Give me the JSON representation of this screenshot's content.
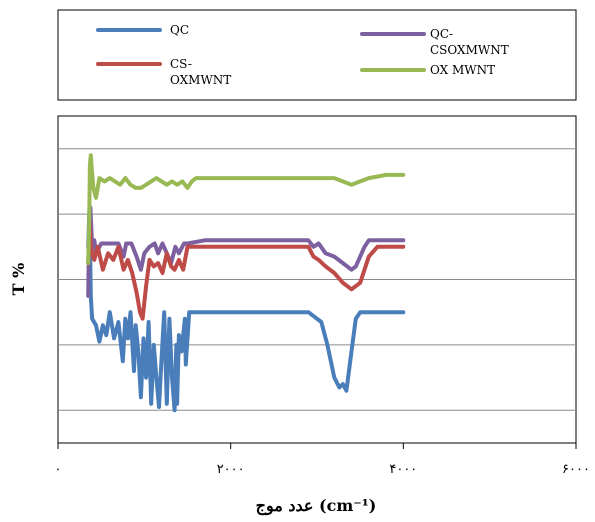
{
  "chart_data": {
    "type": "line",
    "title": "",
    "xlabel": "عدد موج (cm⁻¹)",
    "ylabel": "T %",
    "xlim": [
      0,
      6000
    ],
    "x_ticks": [
      {
        "value": 0,
        "label": "۰"
      },
      {
        "value": 2000,
        "label": "۲۰۰۰"
      },
      {
        "value": 4000,
        "label": "۴۰۰۰"
      },
      {
        "value": 6000,
        "label": "۶۰۰۰"
      }
    ],
    "ylim": [
      0,
      100
    ],
    "y_gridlines": [
      10,
      30,
      50,
      70,
      90
    ],
    "grid": true,
    "legend": {
      "placement": "top",
      "entries": [
        {
          "line1": "QC",
          "line2": "",
          "series": 0
        },
        {
          "line1": "QC-",
          "line2": "CSOXMWNT",
          "series": 1
        },
        {
          "line1": "CS-",
          "line2": "OXMWNT",
          "series": 2
        },
        {
          "line1": "OX MWNT",
          "line2": "",
          "series": 3
        }
      ]
    },
    "series": [
      {
        "name": "QC",
        "color": "#4a7ebb",
        "points": [
          [
            350,
            60
          ],
          [
            365,
            72
          ],
          [
            380,
            45
          ],
          [
            395,
            38
          ],
          [
            440,
            36
          ],
          [
            480,
            31
          ],
          [
            520,
            36
          ],
          [
            560,
            33
          ],
          [
            600,
            40
          ],
          [
            650,
            32
          ],
          [
            700,
            37
          ],
          [
            750,
            25
          ],
          [
            780,
            38
          ],
          [
            810,
            32
          ],
          [
            840,
            40
          ],
          [
            880,
            22
          ],
          [
            900,
            36
          ],
          [
            930,
            28
          ],
          [
            960,
            14
          ],
          [
            990,
            32
          ],
          [
            1020,
            20
          ],
          [
            1050,
            37
          ],
          [
            1080,
            12
          ],
          [
            1110,
            30
          ],
          [
            1140,
            20
          ],
          [
            1170,
            11
          ],
          [
            1200,
            26
          ],
          [
            1230,
            40
          ],
          [
            1260,
            12
          ],
          [
            1290,
            38
          ],
          [
            1320,
            20
          ],
          [
            1350,
            10
          ],
          [
            1370,
            30
          ],
          [
            1380,
            12
          ],
          [
            1400,
            33
          ],
          [
            1430,
            28
          ],
          [
            1470,
            38
          ],
          [
            1480,
            24
          ],
          [
            1520,
            40
          ],
          [
            1600,
            40
          ],
          [
            1800,
            40
          ],
          [
            2000,
            40
          ],
          [
            2300,
            40
          ],
          [
            2600,
            40
          ],
          [
            2900,
            40
          ],
          [
            3050,
            37
          ],
          [
            3120,
            30
          ],
          [
            3200,
            20
          ],
          [
            3260,
            17
          ],
          [
            3300,
            18
          ],
          [
            3340,
            16
          ],
          [
            3400,
            28
          ],
          [
            3450,
            38
          ],
          [
            3500,
            40
          ],
          [
            3700,
            40
          ],
          [
            4000,
            40
          ]
        ]
      },
      {
        "name": "QC-CSOXMWNT",
        "color": "#7d60a0",
        "points": [
          [
            350,
            45
          ],
          [
            360,
            65
          ],
          [
            375,
            72
          ],
          [
            395,
            60
          ],
          [
            420,
            62
          ],
          [
            440,
            58
          ],
          [
            500,
            61
          ],
          [
            600,
            61
          ],
          [
            700,
            61
          ],
          [
            760,
            57
          ],
          [
            790,
            61
          ],
          [
            850,
            61
          ],
          [
            910,
            57
          ],
          [
            960,
            53
          ],
          [
            1000,
            58
          ],
          [
            1060,
            60
          ],
          [
            1120,
            61
          ],
          [
            1160,
            58
          ],
          [
            1210,
            61
          ],
          [
            1260,
            58
          ],
          [
            1310,
            55
          ],
          [
            1360,
            60
          ],
          [
            1400,
            58
          ],
          [
            1460,
            61
          ],
          [
            1500,
            61
          ],
          [
            1700,
            62
          ],
          [
            2000,
            62
          ],
          [
            2500,
            62
          ],
          [
            2900,
            62
          ],
          [
            2960,
            60
          ],
          [
            3020,
            61
          ],
          [
            3100,
            58
          ],
          [
            3200,
            57
          ],
          [
            3300,
            55
          ],
          [
            3400,
            53
          ],
          [
            3450,
            54
          ],
          [
            3550,
            60
          ],
          [
            3600,
            62
          ],
          [
            3800,
            62
          ],
          [
            4000,
            62
          ]
        ]
      },
      {
        "name": "CS-OXMWNT",
        "color": "#be4b48",
        "points": [
          [
            350,
            55
          ],
          [
            365,
            68
          ],
          [
            380,
            60
          ],
          [
            395,
            58
          ],
          [
            420,
            56
          ],
          [
            460,
            60
          ],
          [
            520,
            53
          ],
          [
            580,
            58
          ],
          [
            640,
            56
          ],
          [
            700,
            60
          ],
          [
            760,
            53
          ],
          [
            810,
            56
          ],
          [
            860,
            52
          ],
          [
            910,
            46
          ],
          [
            950,
            40
          ],
          [
            980,
            38
          ],
          [
            1020,
            48
          ],
          [
            1060,
            56
          ],
          [
            1110,
            54
          ],
          [
            1160,
            55
          ],
          [
            1210,
            52
          ],
          [
            1260,
            58
          ],
          [
            1310,
            54
          ],
          [
            1350,
            53
          ],
          [
            1400,
            56
          ],
          [
            1450,
            53
          ],
          [
            1500,
            60
          ],
          [
            1700,
            60
          ],
          [
            2000,
            60
          ],
          [
            2500,
            60
          ],
          [
            2900,
            60
          ],
          [
            2960,
            57
          ],
          [
            3020,
            56
          ],
          [
            3100,
            54
          ],
          [
            3200,
            52
          ],
          [
            3300,
            49
          ],
          [
            3400,
            47
          ],
          [
            3500,
            49
          ],
          [
            3600,
            57
          ],
          [
            3700,
            60
          ],
          [
            4000,
            60
          ]
        ]
      },
      {
        "name": "OX MWNT",
        "color": "#98b954",
        "points": [
          [
            350,
            55
          ],
          [
            360,
            65
          ],
          [
            370,
            85
          ],
          [
            380,
            88
          ],
          [
            390,
            84
          ],
          [
            410,
            78
          ],
          [
            440,
            75
          ],
          [
            480,
            81
          ],
          [
            540,
            80
          ],
          [
            600,
            81
          ],
          [
            660,
            80
          ],
          [
            720,
            79
          ],
          [
            780,
            81
          ],
          [
            840,
            79
          ],
          [
            900,
            78
          ],
          [
            960,
            78
          ],
          [
            1020,
            79
          ],
          [
            1080,
            80
          ],
          [
            1140,
            81
          ],
          [
            1200,
            80
          ],
          [
            1260,
            79
          ],
          [
            1320,
            80
          ],
          [
            1380,
            79
          ],
          [
            1440,
            80
          ],
          [
            1500,
            78
          ],
          [
            1550,
            80
          ],
          [
            1600,
            81
          ],
          [
            1800,
            81
          ],
          [
            2100,
            81
          ],
          [
            2500,
            81
          ],
          [
            2900,
            81
          ],
          [
            3200,
            81
          ],
          [
            3400,
            79
          ],
          [
            3500,
            80
          ],
          [
            3600,
            81
          ],
          [
            3800,
            82
          ],
          [
            4000,
            82
          ]
        ]
      }
    ]
  }
}
